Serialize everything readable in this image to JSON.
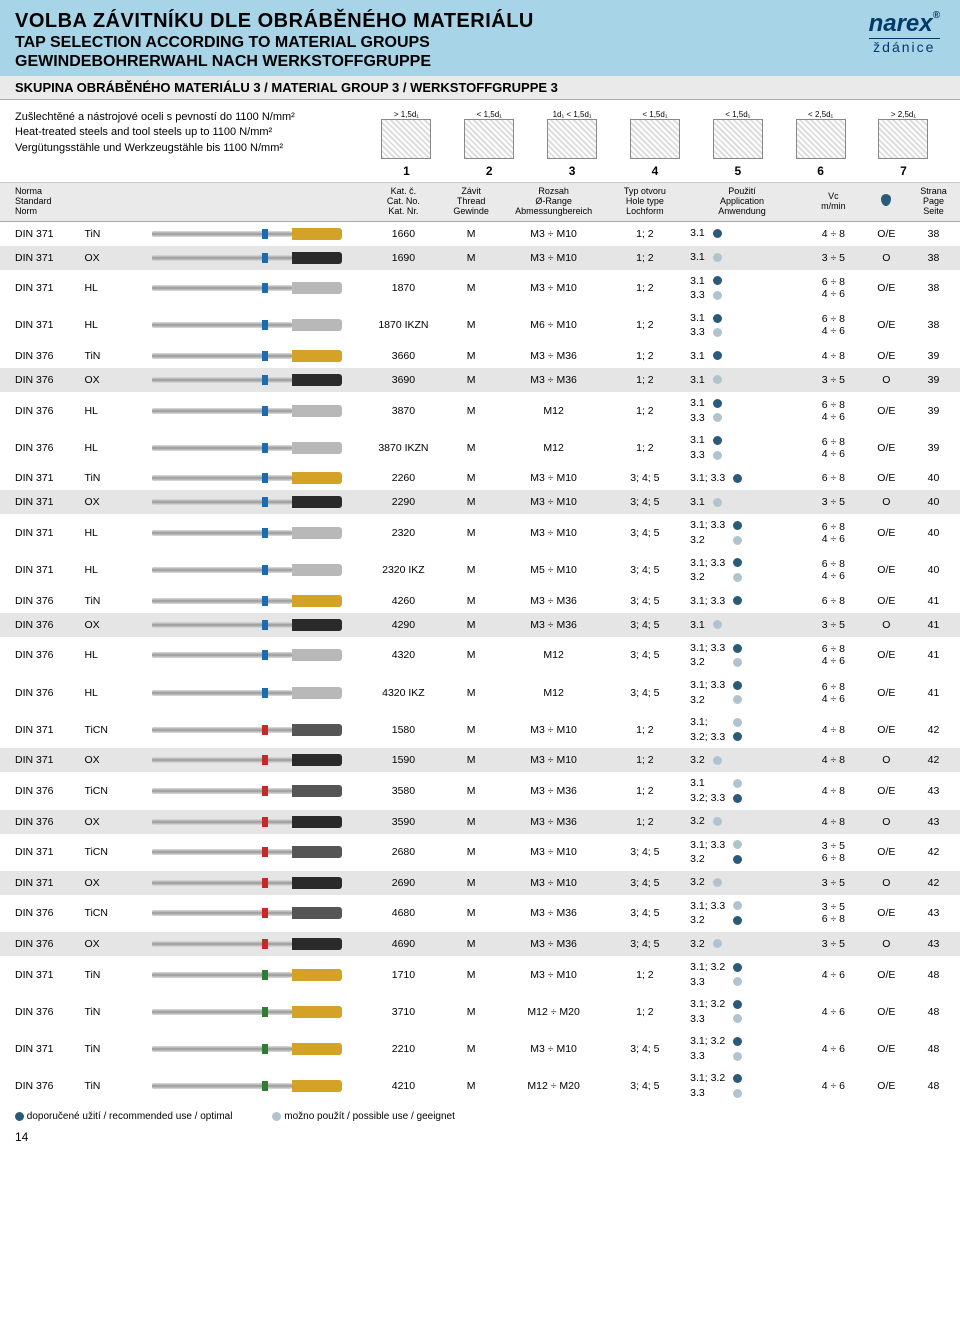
{
  "title_cz": "VOLBA ZÁVITNÍKU DLE OBRÁBĚNÉHO MATERIÁLU",
  "title_en": "TAP SELECTION ACCORDING TO MATERIAL GROUPS",
  "title_de": "GEWINDEBOHRERWAHL NACH WERKSTOFFGRUPPE",
  "skupina": "SKUPINA OBRÁBĚNÉHO MATERIÁLU 3 / MATERIAL GROUP 3 / WERKSTOFFGRUPPE 3",
  "logo_main": "narex",
  "logo_sub": "ždánice",
  "material_line1": "Zušlechtěné a nástrojové oceli s pevností do 1100 N/mm²",
  "material_line2": "Heat-treated steels and tool steels up to 1100 N/mm²",
  "material_line3": "Vergütungsstähle und Werkzeugstähle bis 1100 N/mm²",
  "diagram_labels": [
    "> 1,5d₁",
    "< 1,5d₁",
    "1d₁  < 1,5d₁",
    "< 1,5d₁",
    "< 1,5d₁",
    "< 2,5d₁",
    "> 2,5d₁"
  ],
  "diagram_nums": [
    "1",
    "2",
    "3",
    "4",
    "5",
    "6",
    "7"
  ],
  "headers": {
    "h1": "Norma\nStandard\nNorm",
    "h2": "",
    "h3": "",
    "h4": "Kat. č.\nCat. No.\nKat. Nr.",
    "h5": "Závit\nThread\nGewinde",
    "h6": "Rozsah\nØ-Range\nAbmessungbereich",
    "h7": "Typ otvoru\nHole type\nLochform",
    "h8": "Použití\nApplication\nAnwendung",
    "h9": "Vc\nm/min",
    "h10": "",
    "h11": "Strana\nPage\nSeite"
  },
  "colors": {
    "TiN": "#d4a227",
    "OX": "#2a2a2a",
    "HL": "#b8b8b8",
    "TiCN": "#555",
    "band_blue": "#1a6bb0",
    "band_red": "#c62828",
    "band_green": "#2e7d32"
  },
  "rows": [
    {
      "norm": "DIN 371",
      "coat": "TiN",
      "band": "blue",
      "cat": "1660",
      "th": "M",
      "range": "M3 ÷ M10",
      "hole": "1; 2",
      "use": [
        [
          "3.1",
          "dark"
        ]
      ],
      "vc": "4 ÷ 8",
      "cool": "O/E",
      "page": "38",
      "shade": false
    },
    {
      "norm": "DIN 371",
      "coat": "OX",
      "band": "blue",
      "cat": "1690",
      "th": "M",
      "range": "M3 ÷ M10",
      "hole": "1; 2",
      "use": [
        [
          "3.1",
          "light"
        ]
      ],
      "vc": "3 ÷ 5",
      "cool": "O",
      "page": "38",
      "shade": true
    },
    {
      "norm": "DIN 371",
      "coat": "HL",
      "band": "blue",
      "cat": "1870",
      "th": "M",
      "range": "M3 ÷ M10",
      "hole": "1; 2",
      "use": [
        [
          "3.1",
          "dark"
        ],
        [
          "3.3",
          "light"
        ]
      ],
      "vc": "6 ÷ 8\n4 ÷ 6",
      "cool": "O/E",
      "page": "38",
      "shade": false
    },
    {
      "norm": "DIN 371",
      "coat": "HL",
      "band": "blue",
      "cat": "1870 IKZN",
      "th": "M",
      "range": "M6 ÷ M10",
      "hole": "1; 2",
      "use": [
        [
          "3.1",
          "dark"
        ],
        [
          "3.3",
          "light"
        ]
      ],
      "vc": "6 ÷ 8\n4 ÷ 6",
      "cool": "O/E",
      "page": "38",
      "shade": false
    },
    {
      "norm": "DIN 376",
      "coat": "TiN",
      "band": "blue",
      "cat": "3660",
      "th": "M",
      "range": "M3 ÷ M36",
      "hole": "1; 2",
      "use": [
        [
          "3.1",
          "dark"
        ]
      ],
      "vc": "4 ÷ 8",
      "cool": "O/E",
      "page": "39",
      "shade": false
    },
    {
      "norm": "DIN 376",
      "coat": "OX",
      "band": "blue",
      "cat": "3690",
      "th": "M",
      "range": "M3 ÷ M36",
      "hole": "1; 2",
      "use": [
        [
          "3.1",
          "light"
        ]
      ],
      "vc": "3 ÷ 5",
      "cool": "O",
      "page": "39",
      "shade": true
    },
    {
      "norm": "DIN 376",
      "coat": "HL",
      "band": "blue",
      "cat": "3870",
      "th": "M",
      "range": "M12",
      "hole": "1; 2",
      "use": [
        [
          "3.1",
          "dark"
        ],
        [
          "3.3",
          "light"
        ]
      ],
      "vc": "6 ÷ 8\n4 ÷ 6",
      "cool": "O/E",
      "page": "39",
      "shade": false
    },
    {
      "norm": "DIN 376",
      "coat": "HL",
      "band": "blue",
      "cat": "3870 IKZN",
      "th": "M",
      "range": "M12",
      "hole": "1; 2",
      "use": [
        [
          "3.1",
          "dark"
        ],
        [
          "3.3",
          "light"
        ]
      ],
      "vc": "6 ÷ 8\n4 ÷ 6",
      "cool": "O/E",
      "page": "39",
      "shade": false
    },
    {
      "norm": "DIN 371",
      "coat": "TiN",
      "band": "blue",
      "cat": "2260",
      "th": "M",
      "range": "M3 ÷ M10",
      "hole": "3; 4; 5",
      "use": [
        [
          "3.1; 3.3",
          "dark"
        ]
      ],
      "vc": "6 ÷ 8",
      "cool": "O/E",
      "page": "40",
      "shade": false
    },
    {
      "norm": "DIN 371",
      "coat": "OX",
      "band": "blue",
      "cat": "2290",
      "th": "M",
      "range": "M3 ÷ M10",
      "hole": "3; 4; 5",
      "use": [
        [
          "3.1",
          "light"
        ]
      ],
      "vc": "3 ÷ 5",
      "cool": "O",
      "page": "40",
      "shade": true
    },
    {
      "norm": "DIN 371",
      "coat": "HL",
      "band": "blue",
      "cat": "2320",
      "th": "M",
      "range": "M3 ÷ M10",
      "hole": "3; 4; 5",
      "use": [
        [
          "3.1; 3.3",
          "dark"
        ],
        [
          "3.2",
          "light"
        ]
      ],
      "vc": "6 ÷ 8\n4 ÷ 6",
      "cool": "O/E",
      "page": "40",
      "shade": false
    },
    {
      "norm": "DIN 371",
      "coat": "HL",
      "band": "blue",
      "cat": "2320 IKZ",
      "th": "M",
      "range": "M5 ÷ M10",
      "hole": "3; 4; 5",
      "use": [
        [
          "3.1; 3.3",
          "dark"
        ],
        [
          "3.2",
          "light"
        ]
      ],
      "vc": "6 ÷ 8\n4 ÷ 6",
      "cool": "O/E",
      "page": "40",
      "shade": false
    },
    {
      "norm": "DIN 376",
      "coat": "TiN",
      "band": "blue",
      "cat": "4260",
      "th": "M",
      "range": "M3 ÷ M36",
      "hole": "3; 4; 5",
      "use": [
        [
          "3.1; 3.3",
          "dark"
        ]
      ],
      "vc": "6 ÷ 8",
      "cool": "O/E",
      "page": "41",
      "shade": false
    },
    {
      "norm": "DIN 376",
      "coat": "OX",
      "band": "blue",
      "cat": "4290",
      "th": "M",
      "range": "M3 ÷ M36",
      "hole": "3; 4; 5",
      "use": [
        [
          "3.1",
          "light"
        ]
      ],
      "vc": "3 ÷ 5",
      "cool": "O",
      "page": "41",
      "shade": true
    },
    {
      "norm": "DIN 376",
      "coat": "HL",
      "band": "blue",
      "cat": "4320",
      "th": "M",
      "range": "M12",
      "hole": "3; 4; 5",
      "use": [
        [
          "3.1; 3.3",
          "dark"
        ],
        [
          "3.2",
          "light"
        ]
      ],
      "vc": "6 ÷ 8\n4 ÷ 6",
      "cool": "O/E",
      "page": "41",
      "shade": false
    },
    {
      "norm": "DIN 376",
      "coat": "HL",
      "band": "blue",
      "cat": "4320 IKZ",
      "th": "M",
      "range": "M12",
      "hole": "3; 4; 5",
      "use": [
        [
          "3.1; 3.3",
          "dark"
        ],
        [
          "3.2",
          "light"
        ]
      ],
      "vc": "6 ÷ 8\n4 ÷ 6",
      "cool": "O/E",
      "page": "41",
      "shade": false
    },
    {
      "norm": "DIN 371",
      "coat": "TiCN",
      "band": "red",
      "cat": "1580",
      "th": "M",
      "range": "M3 ÷ M10",
      "hole": "1; 2",
      "use": [
        [
          "3.1;",
          "light"
        ],
        [
          "3.2; 3.3",
          "dark"
        ]
      ],
      "vc": "4 ÷ 8",
      "cool": "O/E",
      "page": "42",
      "shade": false
    },
    {
      "norm": "DIN 371",
      "coat": "OX",
      "band": "red",
      "cat": "1590",
      "th": "M",
      "range": "M3 ÷ M10",
      "hole": "1; 2",
      "use": [
        [
          "3.2",
          "light"
        ]
      ],
      "vc": "4 ÷ 8",
      "cool": "O",
      "page": "42",
      "shade": true
    },
    {
      "norm": "DIN 376",
      "coat": "TiCN",
      "band": "red",
      "cat": "3580",
      "th": "M",
      "range": "M3 ÷ M36",
      "hole": "1; 2",
      "use": [
        [
          "3.1",
          "light"
        ],
        [
          "3.2; 3.3",
          "dark"
        ]
      ],
      "vc": "4 ÷ 8",
      "cool": "O/E",
      "page": "43",
      "shade": false
    },
    {
      "norm": "DIN 376",
      "coat": "OX",
      "band": "red",
      "cat": "3590",
      "th": "M",
      "range": "M3 ÷ M36",
      "hole": "1; 2",
      "use": [
        [
          "3.2",
          "light"
        ]
      ],
      "vc": "4 ÷ 8",
      "cool": "O",
      "page": "43",
      "shade": true
    },
    {
      "norm": "DIN 371",
      "coat": "TiCN",
      "band": "red",
      "cat": "2680",
      "th": "M",
      "range": "M3 ÷ M10",
      "hole": "3; 4; 5",
      "use": [
        [
          "3.1; 3.3",
          "light"
        ],
        [
          "3.2",
          "dark"
        ]
      ],
      "vc": "3 ÷ 5\n6 ÷ 8",
      "cool": "O/E",
      "page": "42",
      "shade": false
    },
    {
      "norm": "DIN 371",
      "coat": "OX",
      "band": "red",
      "cat": "2690",
      "th": "M",
      "range": "M3 ÷ M10",
      "hole": "3; 4; 5",
      "use": [
        [
          "3.2",
          "light"
        ]
      ],
      "vc": "3 ÷ 5",
      "cool": "O",
      "page": "42",
      "shade": true
    },
    {
      "norm": "DIN 376",
      "coat": "TiCN",
      "band": "red",
      "cat": "4680",
      "th": "M",
      "range": "M3 ÷ M36",
      "hole": "3; 4; 5",
      "use": [
        [
          "3.1; 3.3",
          "light"
        ],
        [
          "3.2",
          "dark"
        ]
      ],
      "vc": "3 ÷ 5\n6 ÷ 8",
      "cool": "O/E",
      "page": "43",
      "shade": false
    },
    {
      "norm": "DIN 376",
      "coat": "OX",
      "band": "red",
      "cat": "4690",
      "th": "M",
      "range": "M3 ÷ M36",
      "hole": "3; 4; 5",
      "use": [
        [
          "3.2",
          "light"
        ]
      ],
      "vc": "3 ÷ 5",
      "cool": "O",
      "page": "43",
      "shade": true
    },
    {
      "norm": "DIN 371",
      "coat": "TiN",
      "band": "green",
      "cat": "1710",
      "th": "M",
      "range": "M3 ÷ M10",
      "hole": "1; 2",
      "use": [
        [
          "3.1; 3.2",
          "dark"
        ],
        [
          "3.3",
          "light"
        ]
      ],
      "vc": "4 ÷ 6",
      "cool": "O/E",
      "page": "48",
      "shade": false
    },
    {
      "norm": "DIN 376",
      "coat": "TiN",
      "band": "green",
      "cat": "3710",
      "th": "M",
      "range": "M12 ÷ M20",
      "hole": "1; 2",
      "use": [
        [
          "3.1; 3.2",
          "dark"
        ],
        [
          "3.3",
          "light"
        ]
      ],
      "vc": "4 ÷ 6",
      "cool": "O/E",
      "page": "48",
      "shade": false
    },
    {
      "norm": "DIN 371",
      "coat": "TiN",
      "band": "green",
      "cat": "2210",
      "th": "M",
      "range": "M3 ÷ M10",
      "hole": "3; 4; 5",
      "use": [
        [
          "3.1; 3.2",
          "dark"
        ],
        [
          "3.3",
          "light"
        ]
      ],
      "vc": "4 ÷ 6",
      "cool": "O/E",
      "page": "48",
      "shade": false
    },
    {
      "norm": "DIN 376",
      "coat": "TiN",
      "band": "green",
      "cat": "4210",
      "th": "M",
      "range": "M12 ÷ M20",
      "hole": "3; 4; 5",
      "use": [
        [
          "3.1; 3.2",
          "dark"
        ],
        [
          "3.3",
          "light"
        ]
      ],
      "vc": "4 ÷ 6",
      "cool": "O/E",
      "page": "48",
      "shade": false
    }
  ],
  "footer1": "doporučené užití / recommended use / optimal",
  "footer2": "možno použít / possible use / geeignet",
  "page_number": "14"
}
